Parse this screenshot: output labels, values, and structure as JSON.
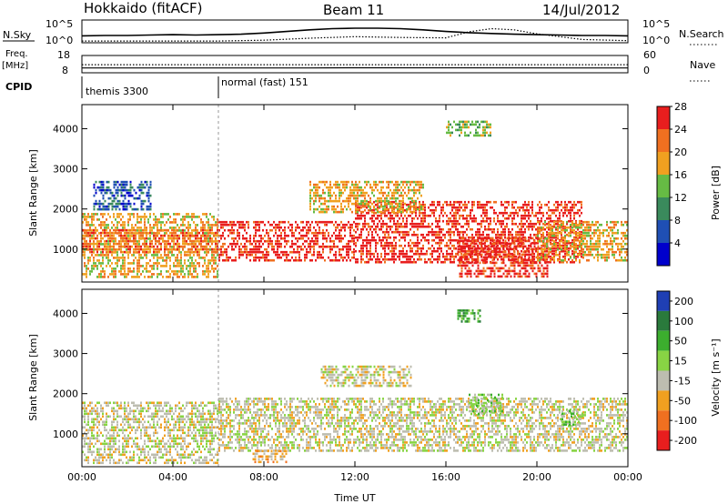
{
  "header": {
    "station": "Hokkaido (fitACF)",
    "beam": "Beam 11",
    "date": "14/Jul/2012"
  },
  "chart_data": [
    {
      "type": "line",
      "panel": "noise",
      "left_label": "N.Sky",
      "right_label": "N.Search",
      "left_ticks": [
        "10^5",
        "10^0"
      ],
      "right_ticks": [
        "10^5",
        "10^0"
      ],
      "series": [
        {
          "name": "N.Sky",
          "style": "solid",
          "x": [
            0,
            1,
            2,
            3,
            4,
            5,
            6,
            7,
            8,
            9,
            10,
            11,
            12,
            13,
            14,
            15,
            16,
            17,
            18,
            19,
            20,
            21,
            22,
            23,
            24
          ],
          "y": [
            1.5,
            1.6,
            1.6,
            1.7,
            1.8,
            1.7,
            1.8,
            1.9,
            2.2,
            2.6,
            3.0,
            3.3,
            3.4,
            3.4,
            3.3,
            3.0,
            2.6,
            2.3,
            2.1,
            1.9,
            1.8,
            1.7,
            1.6,
            1.6,
            1.5
          ]
        },
        {
          "name": "N.Search",
          "style": "dotted",
          "x": [
            0,
            2,
            4,
            6,
            8,
            10,
            12,
            14,
            16,
            17,
            18,
            19,
            20,
            22,
            24
          ],
          "y": [
            0.2,
            0.2,
            0.2,
            0.2,
            0.4,
            0.9,
            1.3,
            1.1,
            1.0,
            2.5,
            3.3,
            3.0,
            2.0,
            0.6,
            0.3
          ]
        }
      ]
    },
    {
      "type": "line",
      "panel": "freq_nave",
      "left_label_1": "Freq.",
      "left_label_2": "[MHz]",
      "right_label": "Nave",
      "left_ticks": [
        "18",
        "8"
      ],
      "right_ticks": [
        "60",
        "0"
      ],
      "series": [
        {
          "name": "Freq.",
          "style": "solid",
          "x": [
            0,
            10,
            12,
            24
          ],
          "y": [
            10.8,
            10.8,
            10.9,
            10.8
          ]
        },
        {
          "name": "Nave",
          "style": "dotted",
          "x": [
            0,
            24
          ],
          "y": [
            28,
            28
          ]
        }
      ]
    },
    {
      "type": "table",
      "panel": "cpid",
      "label": "CPID",
      "segments": [
        {
          "start": 0,
          "end": 6,
          "name": "themis 3300"
        },
        {
          "start": 6,
          "end": 24,
          "name": "normal (fast) 151"
        }
      ]
    },
    {
      "type": "heatmap",
      "panel": "power",
      "ylabel": "Slant Range [km]",
      "ylim": [
        180,
        4600
      ],
      "yticks": [
        "1000",
        "2000",
        "3000",
        "4000"
      ],
      "colorbar": {
        "label": "Power [dB]",
        "ticks": [
          "4",
          "8",
          "12",
          "16",
          "20",
          "24",
          "28"
        ],
        "colors": [
          "#0000cc",
          "#1f4fb4",
          "#3a8a5c",
          "#66bb44",
          "#f0a020",
          "#f07020",
          "#e81e1e"
        ]
      },
      "regions": [
        {
          "t0": 0.0,
          "t1": 6.0,
          "r0": 300,
          "r1": 1900,
          "level": 4
        },
        {
          "t0": 0.0,
          "t1": 6.0,
          "r0": 900,
          "r1": 1500,
          "level": 5
        },
        {
          "t0": 0.5,
          "t1": 3.0,
          "r0": 2000,
          "r1": 2700,
          "level": 1
        },
        {
          "t0": 6.0,
          "t1": 12.0,
          "r0": 700,
          "r1": 1700,
          "level": 6
        },
        {
          "t0": 12.0,
          "t1": 22.0,
          "r0": 700,
          "r1": 2200,
          "level": 6
        },
        {
          "t0": 16.5,
          "t1": 20.5,
          "r0": 300,
          "r1": 1300,
          "level": 6
        },
        {
          "t0": 20.0,
          "t1": 24.0,
          "r0": 700,
          "r1": 1700,
          "level": 4
        },
        {
          "t0": 10.0,
          "t1": 15.0,
          "r0": 1900,
          "r1": 2700,
          "level": 4
        },
        {
          "t0": 16.0,
          "t1": 18.0,
          "r0": 3800,
          "r1": 4200,
          "level": 3
        }
      ]
    },
    {
      "type": "heatmap",
      "panel": "velocity",
      "xlabel": "Time UT",
      "ylabel": "Slant Range [km]",
      "ylim": [
        180,
        4600
      ],
      "xlim": [
        0,
        24
      ],
      "xticks": [
        "00:00",
        "04:00",
        "08:00",
        "12:00",
        "16:00",
        "20:00",
        "00:00"
      ],
      "yticks": [
        "1000",
        "2000",
        "3000",
        "4000"
      ],
      "colorbar": {
        "label": "Velocity [m s⁻¹]",
        "ticks": [
          "200",
          "100",
          "50",
          "15",
          "-15",
          "-50",
          "-100",
          "-200"
        ],
        "colors": [
          "#1f3fb4",
          "#2a7a3c",
          "#3cae2e",
          "#88d444",
          "#bdbdb0",
          "#f0a020",
          "#f07020",
          "#e81e1e"
        ]
      },
      "regions": [
        {
          "t0": 0.0,
          "t1": 6.0,
          "r0": 300,
          "r1": 1800,
          "level": 4
        },
        {
          "t0": 6.0,
          "t1": 24.0,
          "r0": 600,
          "r1": 1900,
          "level": 4
        },
        {
          "t0": 10.5,
          "t1": 14.5,
          "r0": 2200,
          "r1": 2700,
          "level": 4
        },
        {
          "t0": 17.0,
          "t1": 18.5,
          "r0": 1500,
          "r1": 2000,
          "level": 3
        },
        {
          "t0": 21.0,
          "t1": 22.0,
          "r0": 1200,
          "r1": 1600,
          "level": 3
        },
        {
          "t0": 7.5,
          "t1": 9.0,
          "r0": 300,
          "r1": 600,
          "level": 5
        },
        {
          "t0": 16.5,
          "t1": 17.5,
          "r0": 3800,
          "r1": 4100,
          "level": 2
        }
      ]
    }
  ]
}
